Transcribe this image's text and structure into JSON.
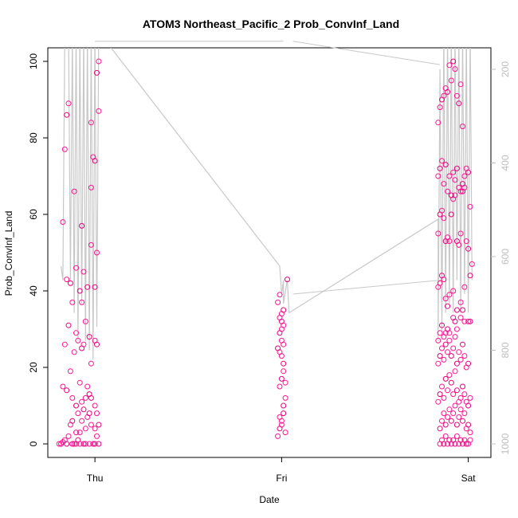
{
  "chart_data": {
    "type": "scatter",
    "title": "ATOM3 Northeast_Pacific_2 Prob_ConvInf_Land",
    "xlabel": "Date",
    "ylabel": "Prob_ConvInf_Land",
    "x_ticks": [
      "Thu",
      "Fri",
      "Sat"
    ],
    "y_ticks": [
      0,
      20,
      40,
      60,
      80,
      100
    ],
    "y_right_ticks": [
      200,
      400,
      600,
      800,
      1000
    ],
    "ylim": [
      0,
      100
    ],
    "y_right_lim": [
      1000,
      200
    ],
    "xlim_days": [
      -0.2,
      2.0
    ],
    "grid": false,
    "legend": "none",
    "colors": {
      "points": "#ff1493",
      "points_alt": "#e6007e",
      "line": "#c8c8c8",
      "axis": "#000000",
      "right_axis": "#bdbdbd"
    },
    "series": [
      {
        "type": "scatter",
        "points": [
          [
            -0.18,
            0
          ],
          [
            -0.17,
            0.5
          ],
          [
            -0.16,
            1
          ],
          [
            -0.15,
            0
          ],
          [
            -0.14,
            2
          ],
          [
            -0.13,
            5
          ],
          [
            -0.12,
            6
          ],
          [
            -0.11,
            0
          ],
          [
            -0.1,
            0
          ],
          [
            -0.09,
            1
          ],
          [
            -0.08,
            3
          ],
          [
            -0.07,
            6
          ],
          [
            -0.06,
            0
          ],
          [
            -0.05,
            4
          ],
          [
            -0.04,
            7
          ],
          [
            -0.03,
            8
          ],
          [
            -0.02,
            5
          ],
          [
            -0.01,
            0
          ],
          [
            0.0,
            0
          ],
          [
            0.01,
            2
          ],
          [
            -0.17,
            15
          ],
          [
            -0.15,
            14
          ],
          [
            -0.13,
            19
          ],
          [
            -0.12,
            12
          ],
          [
            -0.1,
            10
          ],
          [
            -0.09,
            8
          ],
          [
            -0.07,
            11
          ],
          [
            -0.06,
            9
          ],
          [
            -0.05,
            12
          ],
          [
            -0.04,
            15
          ],
          [
            -0.02,
            12
          ],
          [
            0.0,
            10
          ],
          [
            0.01,
            8
          ],
          [
            -0.03,
            13
          ],
          [
            -0.08,
            16
          ],
          [
            -0.16,
            26
          ],
          [
            -0.14,
            31
          ],
          [
            -0.11,
            24
          ],
          [
            -0.09,
            27
          ],
          [
            -0.07,
            25
          ],
          [
            -0.06,
            26
          ],
          [
            -0.05,
            32
          ],
          [
            -0.03,
            28
          ],
          [
            -0.02,
            21
          ],
          [
            0.0,
            27
          ],
          [
            0.01,
            26
          ],
          [
            -0.1,
            29
          ],
          [
            -0.15,
            43
          ],
          [
            -0.13,
            42
          ],
          [
            -0.12,
            37
          ],
          [
            -0.1,
            46
          ],
          [
            -0.08,
            40
          ],
          [
            -0.07,
            37
          ],
          [
            -0.06,
            45
          ],
          [
            -0.04,
            41
          ],
          [
            -0.02,
            52
          ],
          [
            0.01,
            50
          ],
          [
            0.0,
            41
          ],
          [
            -0.17,
            58
          ],
          [
            -0.11,
            66
          ],
          [
            -0.07,
            57
          ],
          [
            -0.02,
            67
          ],
          [
            -0.16,
            77
          ],
          [
            -0.15,
            86
          ],
          [
            -0.14,
            89
          ],
          [
            -0.01,
            75
          ],
          [
            0.0,
            74
          ],
          [
            -0.02,
            84
          ],
          [
            0.02,
            87
          ],
          [
            0.01,
            97
          ],
          [
            0.02,
            100
          ],
          [
            -0.19,
            0
          ],
          [
            -0.12,
            0
          ],
          [
            -0.05,
            0
          ],
          [
            -0.03,
            0
          ],
          [
            0.02,
            0
          ],
          [
            -0.08,
            0
          ],
          [
            -0.1,
            3
          ],
          [
            0.02,
            5
          ],
          [
            0.0,
            4
          ],
          [
            0.97,
            2
          ],
          [
            0.98,
            4
          ],
          [
            0.99,
            6
          ],
          [
            0.98,
            7
          ],
          [
            1.0,
            8
          ],
          [
            1.01,
            3
          ],
          [
            0.99,
            5
          ],
          [
            1.0,
            10
          ],
          [
            1.01,
            12
          ],
          [
            0.98,
            15
          ],
          [
            0.99,
            17
          ],
          [
            1.0,
            19
          ],
          [
            1.01,
            16
          ],
          [
            1.0,
            21
          ],
          [
            0.99,
            23
          ],
          [
            0.98,
            24
          ],
          [
            0.97,
            25
          ],
          [
            1.0,
            26
          ],
          [
            0.99,
            27
          ],
          [
            0.98,
            29
          ],
          [
            0.99,
            30
          ],
          [
            1.0,
            31
          ],
          [
            0.99,
            32
          ],
          [
            0.98,
            33
          ],
          [
            0.99,
            34
          ],
          [
            1.0,
            35
          ],
          [
            0.97,
            37
          ],
          [
            0.98,
            39
          ],
          [
            1.02,
            43
          ],
          [
            1.83,
            0
          ],
          [
            1.84,
            1
          ],
          [
            1.85,
            0
          ],
          [
            1.86,
            2
          ],
          [
            1.87,
            0
          ],
          [
            1.88,
            1
          ],
          [
            1.89,
            0
          ],
          [
            1.9,
            1
          ],
          [
            1.91,
            0
          ],
          [
            1.92,
            2
          ],
          [
            1.93,
            0
          ],
          [
            1.94,
            1
          ],
          [
            1.95,
            0
          ],
          [
            1.96,
            1
          ],
          [
            1.97,
            0
          ],
          [
            1.98,
            0
          ],
          [
            1.99,
            1
          ],
          [
            1.83,
            4
          ],
          [
            1.84,
            6
          ],
          [
            1.85,
            8
          ],
          [
            1.86,
            5
          ],
          [
            1.87,
            7
          ],
          [
            1.88,
            9
          ],
          [
            1.89,
            6
          ],
          [
            1.9,
            8
          ],
          [
            1.91,
            10
          ],
          [
            1.92,
            5
          ],
          [
            1.93,
            7
          ],
          [
            1.94,
            9
          ],
          [
            1.95,
            6
          ],
          [
            1.96,
            8
          ],
          [
            1.97,
            4
          ],
          [
            1.98,
            5
          ],
          [
            1.99,
            3
          ],
          [
            1.82,
            11
          ],
          [
            1.83,
            13
          ],
          [
            1.84,
            15
          ],
          [
            1.85,
            12
          ],
          [
            1.86,
            17
          ],
          [
            1.87,
            14
          ],
          [
            1.88,
            18
          ],
          [
            1.89,
            16
          ],
          [
            1.9,
            13
          ],
          [
            1.91,
            19
          ],
          [
            1.92,
            14
          ],
          [
            1.93,
            11
          ],
          [
            1.94,
            12
          ],
          [
            1.95,
            15
          ],
          [
            1.96,
            13
          ],
          [
            1.97,
            11
          ],
          [
            1.98,
            10
          ],
          [
            1.99,
            12
          ],
          [
            1.82,
            21
          ],
          [
            1.83,
            23
          ],
          [
            1.84,
            25
          ],
          [
            1.85,
            22
          ],
          [
            1.86,
            26
          ],
          [
            1.87,
            24
          ],
          [
            1.88,
            27
          ],
          [
            1.89,
            23
          ],
          [
            1.9,
            25
          ],
          [
            1.91,
            28
          ],
          [
            1.92,
            21
          ],
          [
            1.93,
            24
          ],
          [
            1.94,
            22
          ],
          [
            1.95,
            26
          ],
          [
            1.96,
            23
          ],
          [
            1.97,
            20
          ],
          [
            1.98,
            21
          ],
          [
            1.82,
            27
          ],
          [
            1.83,
            29
          ],
          [
            1.84,
            31
          ],
          [
            1.85,
            28
          ],
          [
            1.86,
            29
          ],
          [
            1.87,
            30
          ],
          [
            1.88,
            29
          ],
          [
            1.9,
            33
          ],
          [
            1.91,
            32
          ],
          [
            1.92,
            30
          ],
          [
            1.94,
            33
          ],
          [
            1.95,
            35
          ],
          [
            1.96,
            32
          ],
          [
            1.98,
            32
          ],
          [
            1.99,
            32
          ],
          [
            1.82,
            41
          ],
          [
            1.83,
            42
          ],
          [
            1.84,
            44
          ],
          [
            1.85,
            43
          ],
          [
            1.86,
            38
          ],
          [
            1.87,
            36
          ],
          [
            1.88,
            39
          ],
          [
            1.9,
            40
          ],
          [
            1.92,
            35
          ],
          [
            1.94,
            37
          ],
          [
            1.96,
            41
          ],
          [
            1.99,
            44
          ],
          [
            2.0,
            47
          ],
          [
            1.82,
            55
          ],
          [
            1.83,
            60
          ],
          [
            1.84,
            61
          ],
          [
            1.85,
            59
          ],
          [
            1.86,
            53
          ],
          [
            1.87,
            54
          ],
          [
            1.88,
            53
          ],
          [
            1.89,
            60
          ],
          [
            1.9,
            64
          ],
          [
            1.91,
            65
          ],
          [
            1.92,
            53
          ],
          [
            1.93,
            52
          ],
          [
            1.94,
            55
          ],
          [
            1.95,
            66
          ],
          [
            1.96,
            67
          ],
          [
            1.97,
            53
          ],
          [
            1.98,
            51
          ],
          [
            1.99,
            62
          ],
          [
            1.82,
            70
          ],
          [
            1.83,
            72
          ],
          [
            1.84,
            74
          ],
          [
            1.85,
            68
          ],
          [
            1.86,
            73
          ],
          [
            1.87,
            66
          ],
          [
            1.88,
            70
          ],
          [
            1.89,
            65
          ],
          [
            1.9,
            71
          ],
          [
            1.91,
            69
          ],
          [
            1.92,
            72
          ],
          [
            1.93,
            67
          ],
          [
            1.94,
            66
          ],
          [
            1.95,
            68
          ],
          [
            1.96,
            70
          ],
          [
            1.97,
            72
          ],
          [
            1.98,
            71
          ],
          [
            1.82,
            84
          ],
          [
            1.83,
            88
          ],
          [
            1.84,
            90
          ],
          [
            1.85,
            91
          ],
          [
            1.86,
            93
          ],
          [
            1.87,
            92
          ],
          [
            1.88,
            99
          ],
          [
            1.89,
            95
          ],
          [
            1.9,
            100
          ],
          [
            1.91,
            98
          ],
          [
            1.92,
            91
          ],
          [
            1.93,
            89
          ],
          [
            1.94,
            94
          ],
          [
            1.95,
            83
          ]
        ]
      }
    ],
    "line_trace": {
      "name": "",
      "axis": "right",
      "points": [
        [
          -0.18,
          620
        ],
        [
          -0.17,
          650
        ],
        [
          -0.16,
          120
        ],
        [
          -0.14,
          120
        ],
        [
          -0.13,
          650
        ],
        [
          -0.12,
          120
        ],
        [
          -0.11,
          720
        ],
        [
          -0.1,
          120
        ],
        [
          -0.09,
          780
        ],
        [
          -0.08,
          120
        ],
        [
          -0.07,
          700
        ],
        [
          -0.06,
          120
        ],
        [
          -0.05,
          780
        ],
        [
          -0.04,
          120
        ],
        [
          -0.03,
          800
        ],
        [
          -0.02,
          120
        ],
        [
          -0.01,
          820
        ],
        [
          0.0,
          120
        ],
        [
          0.01,
          750
        ],
        [
          0.02,
          120
        ],
        [
          0.98,
          620
        ],
        [
          0.99,
          680
        ],
        [
          1.0,
          650
        ],
        [
          1.0,
          700
        ],
        [
          1.02,
          650
        ],
        [
          1.03,
          720
        ],
        [
          1.82,
          520
        ],
        [
          1.82,
          780
        ],
        [
          1.83,
          200
        ],
        [
          1.84,
          760
        ],
        [
          1.85,
          120
        ],
        [
          1.86,
          720
        ],
        [
          1.87,
          120
        ],
        [
          1.88,
          700
        ],
        [
          1.89,
          120
        ],
        [
          1.9,
          720
        ],
        [
          1.91,
          120
        ],
        [
          1.92,
          650
        ],
        [
          1.93,
          120
        ],
        [
          1.94,
          720
        ],
        [
          1.95,
          120
        ],
        [
          1.96,
          680
        ],
        [
          1.97,
          120
        ],
        [
          1.98,
          720
        ],
        [
          1.99,
          120
        ],
        [
          2.0,
          650
        ]
      ],
      "connector_points": [
        [
          0.0,
          140
        ],
        [
          1.0,
          140
        ],
        [
          1.05,
          140
        ],
        [
          1.83,
          190
        ],
        [
          1.05,
          680
        ],
        [
          1.84,
          650
        ]
      ]
    }
  }
}
